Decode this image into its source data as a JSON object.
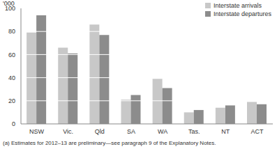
{
  "chart_data": {
    "type": "bar",
    "y_label": "'000",
    "annotation": "(a) Estimates for 2012–13 are preliminary—see paragraph 9 of the Explanatory Notes.",
    "categories": [
      "NSW",
      "Vic.",
      "Qld",
      "SA",
      "WA",
      "Tas.",
      "NT",
      "ACT"
    ],
    "series": [
      {
        "name": "Interstate arrivals",
        "color": "#c8c8c8",
        "values": [
          79,
          66,
          86,
          21,
          39,
          10,
          14,
          19
        ]
      },
      {
        "name": "Interstate departures",
        "color": "#8c8c8c",
        "values": [
          94,
          61,
          77,
          25,
          31,
          12,
          16,
          17
        ]
      }
    ],
    "ylim": [
      0,
      100
    ],
    "yticks": [
      0,
      20,
      40,
      60,
      80,
      100
    ],
    "grid": true,
    "legend": "top-right"
  }
}
